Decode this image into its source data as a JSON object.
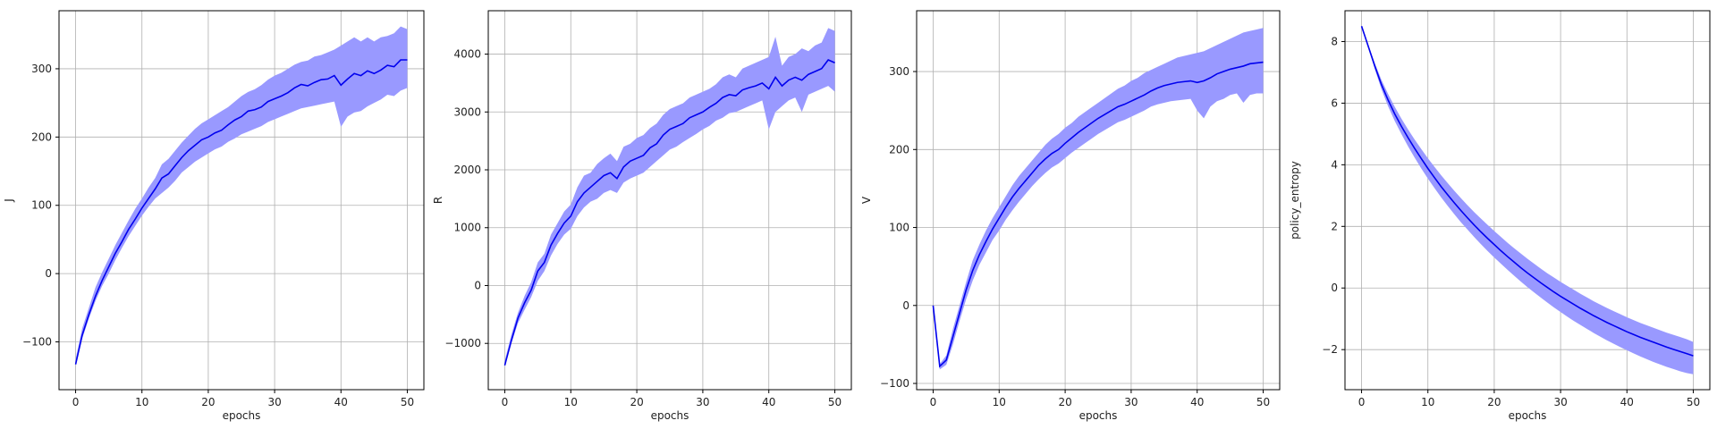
{
  "colors": {
    "band": "#9999ff",
    "line": "#0000ee",
    "grid": "#b0b0b0"
  },
  "chart_data": [
    {
      "type": "line",
      "xlabel": "epochs",
      "ylabel": "J",
      "xlim": [
        -2.5,
        52.5
      ],
      "ylim": [
        -170,
        385
      ],
      "xticks": [
        0,
        10,
        20,
        30,
        40,
        50
      ],
      "yticks": [
        -100,
        0,
        100,
        200,
        300
      ],
      "grid": true,
      "x": [
        0,
        1,
        2,
        3,
        4,
        5,
        6,
        7,
        8,
        9,
        10,
        11,
        12,
        13,
        14,
        15,
        16,
        17,
        18,
        19,
        20,
        21,
        22,
        23,
        24,
        25,
        26,
        27,
        28,
        29,
        30,
        31,
        32,
        33,
        34,
        35,
        36,
        37,
        38,
        39,
        40,
        41,
        42,
        43,
        44,
        45,
        46,
        47,
        48,
        49,
        50
      ],
      "series": [
        {
          "mean": [
            -133,
            -90,
            -60,
            -33,
            -10,
            10,
            30,
            47,
            65,
            80,
            96,
            110,
            124,
            140,
            146,
            158,
            170,
            180,
            188,
            196,
            200,
            206,
            210,
            218,
            225,
            230,
            238,
            240,
            244,
            252,
            256,
            260,
            265,
            272,
            277,
            275,
            280,
            284,
            285,
            290,
            276,
            285,
            293,
            290,
            297,
            293,
            298,
            305,
            303,
            313,
            313
          ],
          "lower": [
            -135,
            -95,
            -66,
            -40,
            -18,
            0,
            20,
            38,
            55,
            70,
            85,
            98,
            110,
            118,
            126,
            136,
            148,
            156,
            164,
            170,
            176,
            182,
            186,
            193,
            198,
            204,
            208,
            212,
            216,
            222,
            226,
            230,
            234,
            238,
            242,
            244,
            246,
            248,
            250,
            252,
            215,
            230,
            236,
            238,
            245,
            250,
            255,
            262,
            260,
            268,
            272
          ],
          "upper": [
            -125,
            -80,
            -50,
            -20,
            2,
            22,
            42,
            60,
            78,
            95,
            110,
            126,
            140,
            160,
            168,
            180,
            192,
            202,
            212,
            220,
            226,
            232,
            238,
            244,
            252,
            260,
            266,
            270,
            276,
            284,
            290,
            294,
            300,
            306,
            310,
            312,
            318,
            320,
            324,
            328,
            334,
            340,
            346,
            340,
            346,
            340,
            346,
            348,
            352,
            362,
            358
          ]
        }
      ]
    },
    {
      "type": "line",
      "xlabel": "epochs",
      "ylabel": "R",
      "xlim": [
        -2.5,
        52.5
      ],
      "ylim": [
        -1800,
        4750
      ],
      "xticks": [
        0,
        10,
        20,
        30,
        40,
        50
      ],
      "yticks": [
        -1000,
        0,
        1000,
        2000,
        3000,
        4000
      ],
      "grid": true,
      "x": [
        0,
        1,
        2,
        3,
        4,
        5,
        6,
        7,
        8,
        9,
        10,
        11,
        12,
        13,
        14,
        15,
        16,
        17,
        18,
        19,
        20,
        21,
        22,
        23,
        24,
        25,
        26,
        27,
        28,
        29,
        30,
        31,
        32,
        33,
        34,
        35,
        36,
        37,
        38,
        39,
        40,
        41,
        42,
        43,
        44,
        45,
        46,
        47,
        48,
        49,
        50
      ],
      "series": [
        {
          "mean": [
            -1380,
            -950,
            -560,
            -300,
            -80,
            250,
            400,
            700,
            900,
            1080,
            1200,
            1450,
            1600,
            1700,
            1800,
            1900,
            1950,
            1850,
            2050,
            2150,
            2200,
            2250,
            2380,
            2450,
            2600,
            2700,
            2750,
            2800,
            2900,
            2950,
            3000,
            3080,
            3150,
            3250,
            3300,
            3280,
            3380,
            3420,
            3450,
            3500,
            3400,
            3600,
            3450,
            3550,
            3600,
            3550,
            3650,
            3700,
            3750,
            3900,
            3850
          ],
          "lower": [
            -1400,
            -1000,
            -650,
            -420,
            -200,
            80,
            250,
            520,
            720,
            880,
            980,
            1200,
            1350,
            1450,
            1500,
            1600,
            1650,
            1600,
            1780,
            1850,
            1900,
            1950,
            2050,
            2150,
            2250,
            2350,
            2400,
            2480,
            2550,
            2620,
            2700,
            2760,
            2850,
            2900,
            2980,
            3000,
            3050,
            3100,
            3150,
            3200,
            2700,
            3000,
            3100,
            3200,
            3250,
            3000,
            3300,
            3350,
            3400,
            3450,
            3350
          ],
          "upper": [
            -1300,
            -850,
            -470,
            -180,
            60,
            400,
            550,
            880,
            1080,
            1280,
            1400,
            1700,
            1900,
            1950,
            2100,
            2200,
            2280,
            2150,
            2400,
            2450,
            2550,
            2600,
            2720,
            2800,
            2950,
            3050,
            3100,
            3150,
            3250,
            3300,
            3350,
            3400,
            3480,
            3600,
            3650,
            3600,
            3750,
            3800,
            3850,
            3900,
            3950,
            4300,
            3800,
            3950,
            4000,
            4100,
            4050,
            4150,
            4200,
            4450,
            4400
          ]
        }
      ]
    },
    {
      "type": "line",
      "xlabel": "epochs",
      "ylabel": "V",
      "xlim": [
        -2.5,
        52.5
      ],
      "ylim": [
        -108,
        378
      ],
      "xticks": [
        0,
        10,
        20,
        30,
        40,
        50
      ],
      "yticks": [
        -100,
        0,
        100,
        200,
        300
      ],
      "grid": true,
      "x": [
        0,
        1,
        2,
        3,
        4,
        5,
        6,
        7,
        8,
        9,
        10,
        11,
        12,
        13,
        14,
        15,
        16,
        17,
        18,
        19,
        20,
        21,
        22,
        23,
        24,
        25,
        26,
        27,
        28,
        29,
        30,
        31,
        32,
        33,
        34,
        35,
        36,
        37,
        38,
        39,
        40,
        41,
        42,
        43,
        44,
        45,
        46,
        47,
        48,
        49,
        50
      ],
      "series": [
        {
          "mean": [
            0,
            -78,
            -70,
            -40,
            -10,
            20,
            45,
            65,
            82,
            98,
            112,
            126,
            139,
            150,
            160,
            170,
            180,
            188,
            195,
            200,
            208,
            215,
            222,
            228,
            234,
            240,
            245,
            250,
            255,
            258,
            262,
            266,
            270,
            275,
            279,
            282,
            284,
            286,
            287,
            288,
            286,
            288,
            292,
            297,
            300,
            303,
            305,
            307,
            310,
            311,
            312
          ],
          "lower": [
            0,
            -82,
            -76,
            -50,
            -20,
            8,
            32,
            52,
            68,
            84,
            96,
            110,
            122,
            133,
            143,
            153,
            162,
            170,
            177,
            182,
            189,
            196,
            202,
            208,
            214,
            220,
            225,
            230,
            235,
            238,
            242,
            246,
            250,
            255,
            258,
            260,
            262,
            263,
            264,
            265,
            250,
            240,
            255,
            262,
            265,
            270,
            272,
            260,
            270,
            272,
            272
          ],
          "upper": [
            0,
            -75,
            -64,
            -30,
            0,
            30,
            58,
            78,
            96,
            112,
            126,
            140,
            154,
            166,
            176,
            186,
            196,
            206,
            214,
            220,
            228,
            234,
            242,
            248,
            254,
            260,
            266,
            272,
            278,
            282,
            288,
            292,
            298,
            302,
            306,
            310,
            314,
            318,
            320,
            322,
            324,
            326,
            330,
            334,
            338,
            342,
            346,
            350,
            352,
            354,
            356
          ]
        }
      ]
    },
    {
      "type": "line",
      "xlabel": "epochs",
      "ylabel": "policy_entropy",
      "xlim": [
        -2.5,
        52.5
      ],
      "ylim": [
        -3.3,
        9.0
      ],
      "xticks": [
        0,
        10,
        20,
        30,
        40,
        50
      ],
      "yticks": [
        -2,
        0,
        2,
        4,
        6,
        8
      ],
      "grid": true,
      "x": [
        0,
        1,
        2,
        3,
        4,
        5,
        6,
        7,
        8,
        9,
        10,
        11,
        12,
        13,
        14,
        15,
        16,
        17,
        18,
        19,
        20,
        21,
        22,
        23,
        24,
        25,
        26,
        27,
        28,
        29,
        30,
        31,
        32,
        33,
        34,
        35,
        36,
        37,
        38,
        39,
        40,
        41,
        42,
        43,
        44,
        45,
        46,
        47,
        48,
        49,
        50
      ],
      "series": [
        {
          "mean": [
            8.5,
            7.85,
            7.2,
            6.6,
            6.1,
            5.65,
            5.25,
            4.88,
            4.53,
            4.2,
            3.88,
            3.58,
            3.29,
            3.02,
            2.76,
            2.51,
            2.27,
            2.04,
            1.82,
            1.61,
            1.41,
            1.21,
            1.02,
            0.84,
            0.66,
            0.49,
            0.33,
            0.17,
            0.02,
            -0.13,
            -0.27,
            -0.4,
            -0.53,
            -0.66,
            -0.78,
            -0.9,
            -1.01,
            -1.12,
            -1.22,
            -1.32,
            -1.42,
            -1.51,
            -1.6,
            -1.68,
            -1.76,
            -1.84,
            -1.92,
            -1.99,
            -2.06,
            -2.13,
            -2.2
          ],
          "lower": [
            8.5,
            7.8,
            7.1,
            6.45,
            5.9,
            5.42,
            5.0,
            4.6,
            4.23,
            3.88,
            3.55,
            3.24,
            2.94,
            2.66,
            2.39,
            2.13,
            1.89,
            1.65,
            1.42,
            1.2,
            0.99,
            0.79,
            0.59,
            0.4,
            0.21,
            0.03,
            -0.14,
            -0.31,
            -0.47,
            -0.63,
            -0.78,
            -0.93,
            -1.07,
            -1.2,
            -1.33,
            -1.46,
            -1.58,
            -1.7,
            -1.81,
            -1.92,
            -2.02,
            -2.12,
            -2.22,
            -2.31,
            -2.4,
            -2.48,
            -2.56,
            -2.63,
            -2.7,
            -2.76,
            -2.8
          ],
          "upper": [
            8.5,
            7.9,
            7.3,
            6.75,
            6.3,
            5.88,
            5.5,
            5.15,
            4.82,
            4.51,
            4.21,
            3.93,
            3.66,
            3.4,
            3.15,
            2.91,
            2.68,
            2.46,
            2.25,
            2.05,
            1.85,
            1.66,
            1.47,
            1.29,
            1.12,
            0.95,
            0.79,
            0.63,
            0.48,
            0.34,
            0.2,
            0.07,
            -0.06,
            -0.19,
            -0.31,
            -0.43,
            -0.54,
            -0.65,
            -0.75,
            -0.85,
            -0.95,
            -1.04,
            -1.13,
            -1.21,
            -1.29,
            -1.37,
            -1.45,
            -1.52,
            -1.59,
            -1.66,
            -1.75
          ]
        }
      ]
    }
  ]
}
